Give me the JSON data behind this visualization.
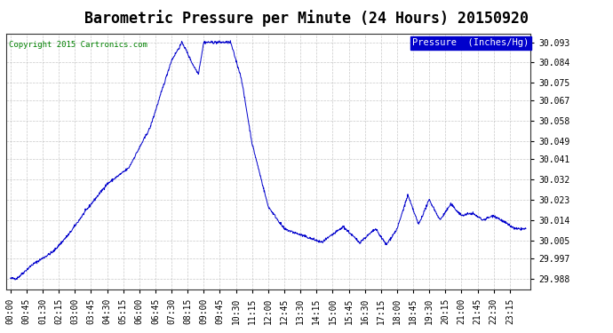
{
  "title": "Barometric Pressure per Minute (24 Hours) 20150920",
  "copyright": "Copyright 2015 Cartronics.com",
  "legend_label": "Pressure  (Inches/Hg)",
  "line_color": "#0000cc",
  "background_color": "#ffffff",
  "grid_color": "#bbbbbb",
  "legend_bg": "#0000cc",
  "legend_text_color": "#ffffff",
  "yticks": [
    29.988,
    29.997,
    30.005,
    30.014,
    30.023,
    30.032,
    30.041,
    30.049,
    30.058,
    30.067,
    30.075,
    30.084,
    30.093
  ],
  "ylim": [
    29.983,
    30.097
  ],
  "xtick_labels": [
    "00:00",
    "00:45",
    "01:30",
    "02:15",
    "03:00",
    "03:45",
    "04:30",
    "05:15",
    "06:00",
    "06:45",
    "07:30",
    "08:15",
    "09:00",
    "09:45",
    "10:30",
    "11:15",
    "12:00",
    "12:45",
    "13:30",
    "14:15",
    "15:00",
    "15:45",
    "16:30",
    "17:15",
    "18:00",
    "18:45",
    "19:30",
    "20:15",
    "21:00",
    "21:45",
    "22:30",
    "23:15"
  ],
  "num_points": 1440,
  "title_fontsize": 12,
  "copyright_fontsize": 6.5,
  "tick_fontsize": 7,
  "legend_fontsize": 7.5
}
